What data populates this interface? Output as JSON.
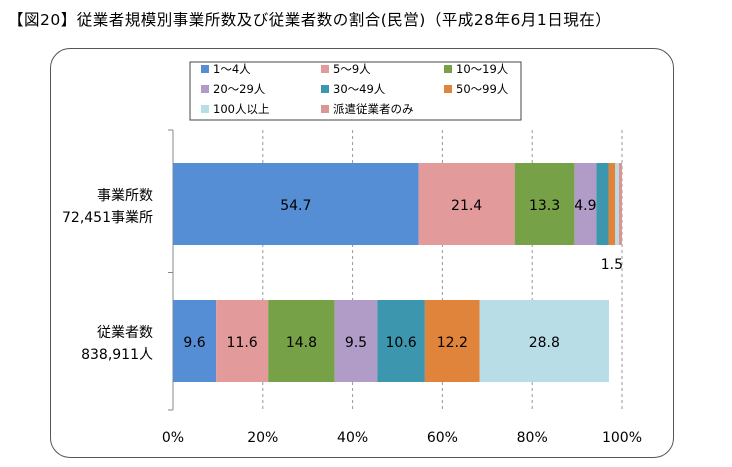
{
  "title": "【図20】従業者規模別事業所数及び従業者数の割合(民営)（平成28年6月1日現在）",
  "chart_data": {
    "type": "bar",
    "orientation": "horizontal",
    "stacked": true,
    "percent_stacked": true,
    "categories": [
      [
        "事業所数",
        "72,451事業所"
      ],
      [
        "従業者数",
        "838,911人"
      ]
    ],
    "series": [
      {
        "name": "1～4人",
        "color": "#558ed5",
        "values": [
          54.7,
          9.6
        ],
        "labels": [
          "54.7",
          "9.6"
        ]
      },
      {
        "name": "5～9人",
        "color": "#e29a9a",
        "values": [
          21.4,
          11.6
        ],
        "labels": [
          "21.4",
          "11.6"
        ]
      },
      {
        "name": "10～19人",
        "color": "#77a146",
        "values": [
          13.3,
          14.8
        ],
        "labels": [
          "13.3",
          "14.8"
        ]
      },
      {
        "name": "20～29人",
        "color": "#b09cc6",
        "values": [
          4.9,
          9.5
        ],
        "labels": [
          "4.9",
          "9.5"
        ]
      },
      {
        "name": "30～49人",
        "color": "#3c97ae",
        "values": [
          2.7,
          10.6
        ],
        "labels": [
          "",
          "10.6"
        ]
      },
      {
        "name": "50～99人",
        "color": "#e0843c",
        "values": [
          1.5,
          12.2
        ],
        "labels": [
          "1.5",
          "12.2"
        ]
      },
      {
        "name": "100人以上",
        "color": "#b9dde7",
        "values": [
          0.8,
          28.8
        ],
        "labels": [
          "",
          "28.8"
        ]
      },
      {
        "name": "派遣従業者のみ",
        "color": "#da9694",
        "values": [
          0.7,
          0
        ],
        "labels": [
          "",
          ""
        ]
      }
    ],
    "xlim": [
      0,
      100
    ],
    "xticks": [
      "0%",
      "20%",
      "40%",
      "60%",
      "80%",
      "100%"
    ],
    "grid": "vertical dashed",
    "legend": "top-left, 3 columns",
    "xlabel": "",
    "ylabel": ""
  }
}
